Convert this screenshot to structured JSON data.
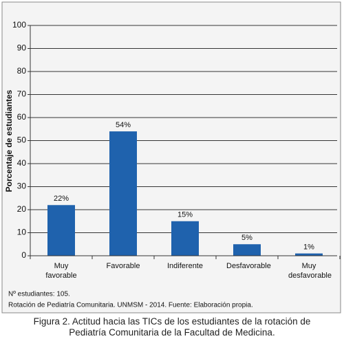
{
  "chart_data": {
    "type": "bar",
    "y_label": "Porcentaje  de estudiantes",
    "categories": [
      "Muy favorable",
      "Favorable",
      "Indiferente",
      "Desfavorable",
      "Muy desfavorable"
    ],
    "values": [
      22,
      54,
      15,
      5,
      1
    ],
    "value_labels": [
      "22%",
      "54%",
      "15%",
      "5%",
      "1%"
    ],
    "color": "#1f62ad",
    "ylim": [
      0,
      100
    ],
    "yticks": [
      0,
      10,
      20,
      30,
      40,
      50,
      60,
      70,
      80,
      90,
      100
    ],
    "grid": true,
    "notes": [
      "Nº estudiantes: 105.",
      "Rotación de Pediatría Comunitaria. UNMSM - 2014. Fuente: Elaboración propia."
    ],
    "caption": "Figura 2. Actitud hacia las TICs de los estudiantes de la rotación de Pediatría Comunitaria de la Facultad de Medicina."
  }
}
